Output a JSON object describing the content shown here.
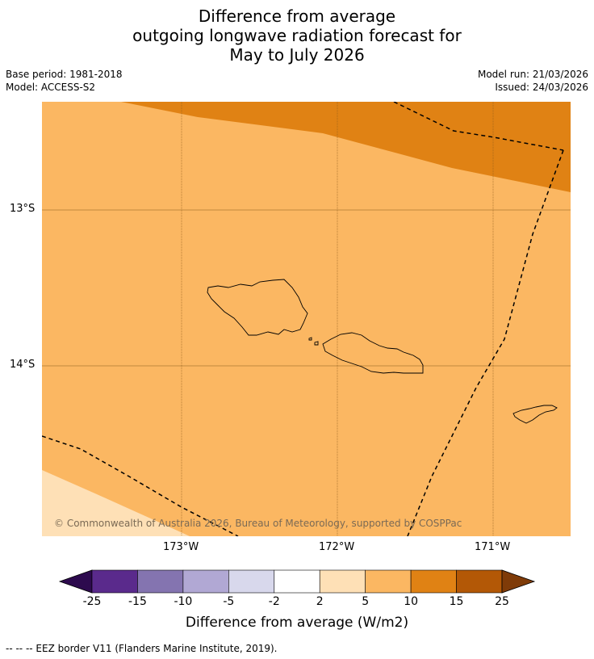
{
  "title": {
    "line1": "Difference from average",
    "line2": "outgoing longwave radiation forecast for",
    "line3": "May to July 2026"
  },
  "meta": {
    "base_period": "Base period: 1981-2018",
    "model": "Model: ACCESS-S2",
    "model_run": "Model run: 21/03/2026",
    "issued": "Issued: 24/03/2026"
  },
  "map": {
    "lat_labels": [
      "13°S",
      "14°S"
    ],
    "lon_labels": [
      "173°W",
      "172°W",
      "171°W"
    ],
    "credit": "© Commonwealth of Australia 2026, Bureau of Meteorology, supported by COSPPac"
  },
  "colorbar": {
    "title": "Difference from average (W/m2)",
    "ticks": [
      "-25",
      "-15",
      "-10",
      "-5",
      "-2",
      "2",
      "5",
      "10",
      "15",
      "25"
    ],
    "colors": [
      "#2d0a4e",
      "#5a2a8c",
      "#8474b0",
      "#b1a8d4",
      "#d8d8ec",
      "#ffffff",
      "#fee0b6",
      "#fbb762",
      "#e08214",
      "#b35806",
      "#7f3b08"
    ]
  },
  "footnote": "--  --  -- EEZ border V11 (Flanders Marine Institute, 2019)."
}
